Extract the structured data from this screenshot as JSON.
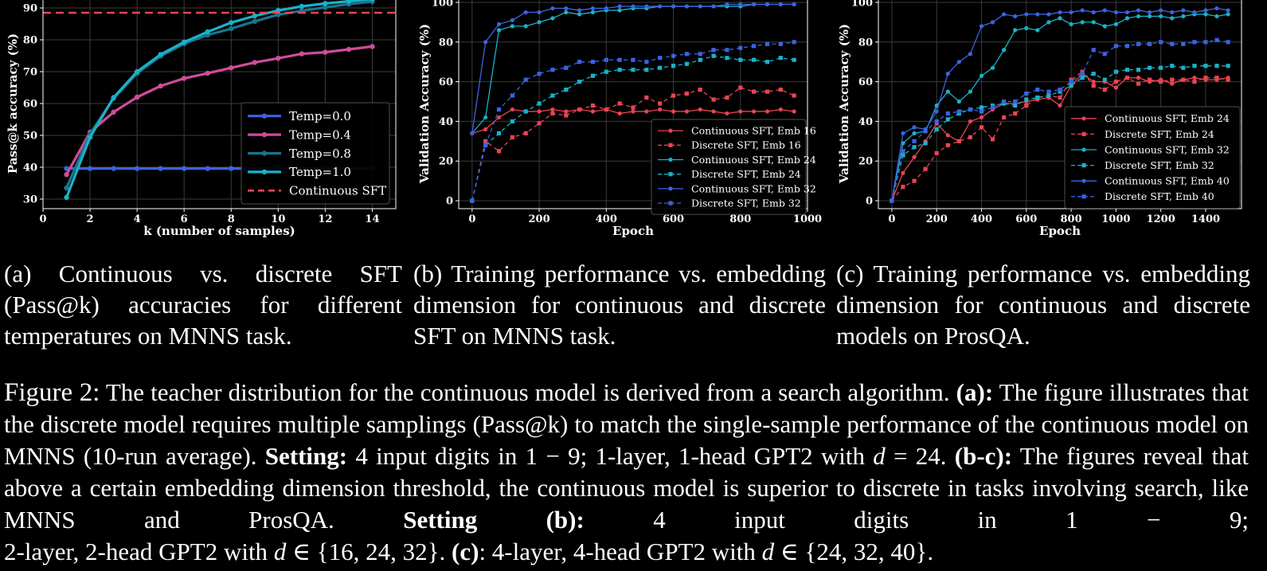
{
  "chart_data": [
    {
      "type": "line",
      "xlabel": "k (number of samples)",
      "ylabel": "Pass@k accuracy (%)",
      "xlim": [
        0,
        15
      ],
      "ylim": [
        27,
        93
      ],
      "xticks": [
        0,
        2,
        4,
        6,
        8,
        10,
        12,
        14
      ],
      "yticks": [
        30,
        40,
        50,
        60,
        70,
        80,
        90
      ],
      "legend": "lower-right",
      "grid": true,
      "x": [
        1,
        2,
        3,
        4,
        5,
        6,
        7,
        8,
        9,
        10,
        11,
        12,
        13,
        14
      ],
      "series": [
        {
          "name": "Temp=0.0",
          "color": "#3b63e0",
          "values": [
            39.6,
            39.6,
            39.6,
            39.6,
            39.6,
            39.6,
            39.6,
            39.6,
            39.6,
            39.6,
            39.6,
            39.6,
            39.6,
            39.6
          ]
        },
        {
          "name": "Temp=0.4",
          "color": "#cf4c9a",
          "values": [
            37.7,
            51.0,
            57.3,
            62.0,
            65.5,
            67.9,
            69.5,
            71.2,
            72.9,
            74.2,
            75.6,
            76.1,
            77.0,
            77.9
          ]
        },
        {
          "name": "Temp=0.8",
          "color": "#19758d",
          "values": [
            33.5,
            50.5,
            61.6,
            69.5,
            74.9,
            78.8,
            81.5,
            83.5,
            85.8,
            87.9,
            89.1,
            90.2,
            91.2,
            92.0
          ]
        },
        {
          "name": "Temp=1.0",
          "color": "#1bb1c9",
          "values": [
            30.5,
            49.4,
            61.9,
            70.0,
            75.4,
            79.3,
            82.5,
            85.4,
            87.5,
            89.2,
            90.5,
            91.4,
            92.1,
            92.8
          ]
        },
        {
          "name": "Continuous SFT",
          "color": "#e64553",
          "dashed": true,
          "constant": 88.5
        }
      ]
    },
    {
      "type": "line",
      "xlabel": "Epoch",
      "ylabel": "Validation Accuracy (%)",
      "xlim": [
        -40,
        1000
      ],
      "ylim": [
        -4,
        102
      ],
      "xticks": [
        0,
        200,
        400,
        600,
        800,
        1000
      ],
      "yticks": [
        0,
        20,
        40,
        60,
        80,
        100
      ],
      "legend": "lower-right",
      "grid": true,
      "x": [
        0,
        40,
        80,
        120,
        160,
        200,
        240,
        280,
        320,
        360,
        400,
        440,
        480,
        520,
        560,
        600,
        640,
        680,
        720,
        760,
        800,
        840,
        880,
        920,
        960
      ],
      "series": [
        {
          "name": "Continuous SFT, Emb 16",
          "color": "#e64553",
          "values": [
            34,
            36,
            42,
            46,
            45,
            45,
            46,
            45,
            46,
            45,
            46,
            44,
            45,
            45,
            46,
            45,
            45,
            46,
            45,
            44,
            45,
            45,
            45,
            46,
            45
          ]
        },
        {
          "name": "Discrete SFT, Emb 16",
          "color": "#e64553",
          "dashed": true,
          "values": [
            0,
            30,
            25,
            32,
            34,
            39,
            44,
            43,
            46,
            48,
            46,
            49,
            47,
            52,
            49,
            53,
            54,
            56,
            51,
            52,
            57,
            55,
            55,
            56,
            53
          ]
        },
        {
          "name": "Continuous SFT, Emb 24",
          "color": "#1bb1c9",
          "values": [
            34,
            42,
            86,
            88,
            88,
            90,
            92,
            95,
            94,
            95,
            96,
            96,
            97,
            97,
            98,
            98,
            98,
            98,
            98,
            98,
            98,
            99,
            99,
            99,
            99
          ]
        },
        {
          "name": "Discrete SFT, Emb 24",
          "color": "#1bb1c9",
          "dashed": true,
          "values": [
            0,
            28,
            34,
            40,
            45,
            49,
            53,
            56,
            60,
            63,
            65,
            66,
            66,
            66,
            67,
            68,
            69,
            71,
            73,
            72,
            71,
            71,
            70,
            72,
            71
          ]
        },
        {
          "name": "Continuous SFT, Emb 32",
          "color": "#3b63e0",
          "values": [
            34,
            80,
            89,
            91,
            95,
            95,
            97,
            97,
            96,
            97,
            97,
            98,
            98,
            98,
            98,
            98,
            98,
            98,
            98,
            99,
            99,
            99,
            99,
            99,
            99
          ]
        },
        {
          "name": "Discrete SFT, Emb 32",
          "color": "#3b63e0",
          "dashed": true,
          "values": [
            0,
            28,
            46,
            53,
            61,
            64,
            66,
            67,
            70,
            70,
            71,
            71,
            71,
            70,
            72,
            73,
            74,
            74,
            76,
            76,
            77,
            78,
            79,
            79,
            80
          ]
        }
      ]
    },
    {
      "type": "line",
      "xlabel": "Epoch",
      "ylabel": "Validation Accuracy (%)",
      "xlim": [
        -60,
        1560
      ],
      "ylim": [
        -4,
        102
      ],
      "xticks": [
        0,
        200,
        400,
        600,
        800,
        1000,
        1200,
        1400
      ],
      "yticks": [
        0,
        20,
        40,
        60,
        80,
        100
      ],
      "legend": "lower-right",
      "grid": true,
      "x": [
        0,
        50,
        100,
        150,
        200,
        250,
        300,
        350,
        400,
        450,
        500,
        550,
        600,
        650,
        700,
        750,
        800,
        850,
        900,
        950,
        1000,
        1050,
        1100,
        1150,
        1200,
        1250,
        1300,
        1350,
        1400,
        1450,
        1500
      ],
      "series": [
        {
          "name": "Continuous SFT, Emb 24",
          "color": "#e64553",
          "values": [
            0,
            14,
            22,
            30,
            39,
            33,
            30,
            40,
            42,
            46,
            49,
            49,
            50,
            51,
            52,
            48,
            58,
            64,
            60,
            60,
            57,
            62,
            62,
            60,
            61,
            59,
            61,
            62,
            61,
            61,
            62
          ]
        },
        {
          "name": "Discrete SFT, Emb 24",
          "color": "#e64553",
          "dashed": true,
          "values": [
            0,
            7,
            10,
            16,
            24,
            28,
            30,
            32,
            37,
            31,
            42,
            44,
            48,
            52,
            53,
            52,
            61,
            65,
            58,
            56,
            60,
            62,
            59,
            61,
            60,
            61,
            61,
            60,
            62,
            62,
            61
          ]
        },
        {
          "name": "Continuous SFT, Emb 32",
          "color": "#1bb1c9",
          "values": [
            0,
            29,
            34,
            35,
            48,
            55,
            50,
            55,
            63,
            67,
            76,
            86,
            87,
            86,
            90,
            92,
            89,
            90,
            90,
            88,
            89,
            92,
            93,
            93,
            93,
            92,
            93,
            94,
            94,
            93,
            94
          ]
        },
        {
          "name": "Discrete SFT, Emb 32",
          "color": "#1bb1c9",
          "dashed": true,
          "values": [
            0,
            23,
            27,
            29,
            36,
            41,
            44,
            46,
            47,
            48,
            49,
            48,
            51,
            52,
            53,
            55,
            58,
            62,
            64,
            61,
            65,
            66,
            66,
            67,
            67,
            68,
            67,
            68,
            68,
            68,
            68
          ]
        },
        {
          "name": "Continuous SFT, Emb 40",
          "color": "#3b63e0",
          "values": [
            0,
            34,
            37,
            36,
            45,
            64,
            70,
            74,
            88,
            90,
            94,
            93,
            94,
            94,
            94,
            95,
            95,
            96,
            95,
            96,
            95,
            95,
            96,
            95,
            96,
            95,
            96,
            95,
            96,
            97,
            96
          ]
        },
        {
          "name": "Discrete SFT, Emb 40",
          "color": "#3b63e0",
          "dashed": true,
          "values": [
            0,
            25,
            30,
            35,
            40,
            44,
            45,
            46,
            45,
            47,
            50,
            50,
            54,
            56,
            55,
            56,
            60,
            64,
            76,
            74,
            78,
            78,
            79,
            79,
            80,
            79,
            79,
            80,
            80,
            81,
            80
          ]
        }
      ]
    }
  ],
  "subcaptions": {
    "a": "(a) Continuous vs. discrete SFT (Pass@k) accuracies for different temperatures on MNNS task.",
    "b": "(b) Training performance vs. embed­ding dimension for continuous and discrete SFT on MNNS task.",
    "c": "(c) Training performance vs. embed­ding dimension for continuous and discrete models on ProsQA."
  },
  "caption": {
    "label": "Figure 2:",
    "t1": " The teacher distribution for the continuous model is derived from a search algorithm. ",
    "b1": "(a):",
    "t2": " The figure illustrates that the discrete model requires multiple samplings (Pass@k) to match the single-sample performance of the continuous model on MNNS (10-run average). ",
    "b2": "Setting:",
    "t3": " 4 input digits in 1 − 9; 1-layer, 1-head GPT2 with ",
    "v1": "d",
    "t4": " = 24. ",
    "b3": "(b-c):",
    "t5": " The figures reveal that above a certain embedding dimension threshold, the continuous model is superior to discrete in tasks involving search, like MNNS and ProsQA. ",
    "b4": "Setting (b):",
    "t6": " 4 input digits in 1 − 9;",
    "t7": "2-layer, 2-head GPT2 with ",
    "v2": "d",
    "t8": " ∈ {16, 24, 32}. ",
    "b5": "(c)",
    "t9": ": 4-layer, 4-head GPT2 with ",
    "v3": "d",
    "t10": " ∈ {24, 32, 40}."
  }
}
